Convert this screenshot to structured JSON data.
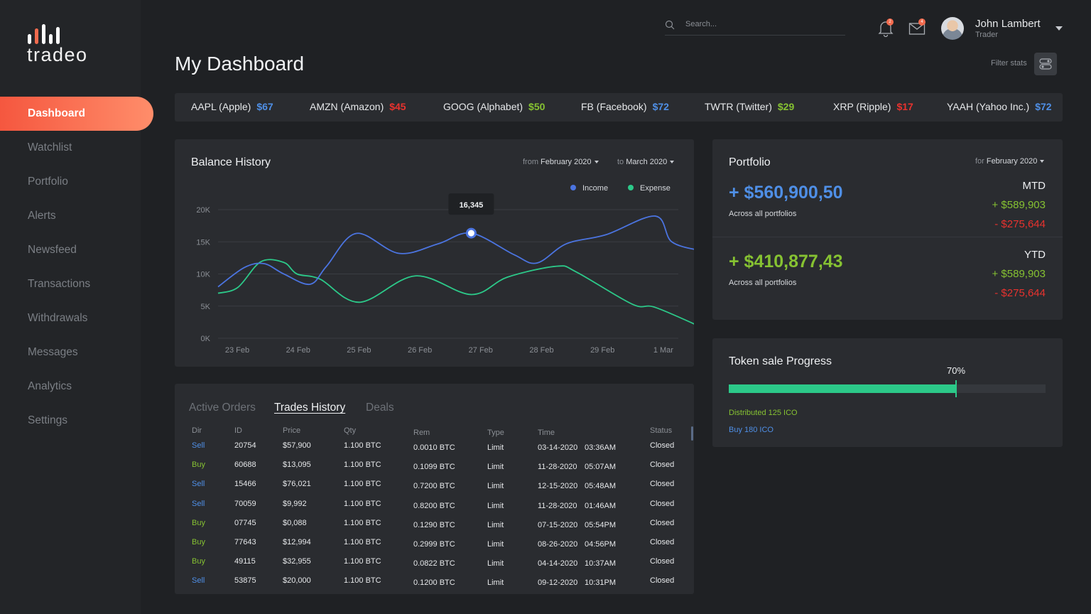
{
  "brand": {
    "name": "tradeo"
  },
  "sidebar": {
    "items": [
      {
        "label": "Dashboard",
        "active": true
      },
      {
        "label": "Watchlist"
      },
      {
        "label": "Portfolio"
      },
      {
        "label": "Alerts"
      },
      {
        "label": "Newsfeed"
      },
      {
        "label": "Transactions"
      },
      {
        "label": "Withdrawals"
      },
      {
        "label": "Messages"
      },
      {
        "label": "Analytics"
      },
      {
        "label": "Settings"
      }
    ]
  },
  "header": {
    "search_placeholder": "Search...",
    "notifications_badge": "2",
    "messages_badge": "4",
    "user": {
      "name": "John Lambert",
      "role": "Trader"
    },
    "page_title": "My Dashboard",
    "filter_label": "Filter stats"
  },
  "ticker": [
    {
      "name": "AAPL (Apple)",
      "price": "$67",
      "color": "#4f8fe6"
    },
    {
      "name": "AMZN (Amazon)",
      "price": "$45",
      "color": "#e8322e"
    },
    {
      "name": "GOOG (Alphabet)",
      "price": "$50",
      "color": "#86c232"
    },
    {
      "name": "FB (Facebook)",
      "price": "$72",
      "color": "#4f8fe6"
    },
    {
      "name": "TWTR (Twitter)",
      "price": "$29",
      "color": "#86c232"
    },
    {
      "name": "XRP (Ripple)",
      "price": "$17",
      "color": "#e8322e"
    },
    {
      "name": "YAAH (Yahoo Inc.)",
      "price": "$72",
      "color": "#4f8fe6"
    }
  ],
  "balance": {
    "title": "Balance History",
    "from_label": "from",
    "from_value": "February 2020",
    "to_label": "to",
    "to_value": "March 2020",
    "tooltip": "16,345"
  },
  "chart_data": {
    "type": "line",
    "title": "Balance History",
    "x": [
      "23 Feb",
      "24 Feb",
      "25 Feb",
      "26 Feb",
      "27 Feb",
      "28 Feb",
      "29 Feb",
      "1 Mar"
    ],
    "y_ticks": [
      "20K",
      "15K",
      "10K",
      "5K",
      "0K"
    ],
    "ylim": [
      0,
      20000
    ],
    "grid": true,
    "legend": "top-right",
    "series": [
      {
        "name": "Income",
        "color": "#4b74e0",
        "points": [
          [
            0,
            8000
          ],
          [
            0.4,
            11000
          ],
          [
            0.7,
            11600
          ],
          [
            1,
            10000
          ],
          [
            1.4,
            8400
          ],
          [
            1.65,
            11200
          ],
          [
            2.1,
            16300
          ],
          [
            2.75,
            13200
          ],
          [
            3.35,
            14700
          ],
          [
            3.85,
            16345
          ],
          [
            4.5,
            13000
          ],
          [
            4.85,
            11700
          ],
          [
            5.3,
            14700
          ],
          [
            5.9,
            16100
          ],
          [
            6.65,
            19000
          ],
          [
            6.9,
            15000
          ],
          [
            7.35,
            13600
          ]
        ]
      },
      {
        "name": "Expense",
        "color": "#2cc989",
        "points": [
          [
            0,
            7000
          ],
          [
            0.3,
            7900
          ],
          [
            0.65,
            11900
          ],
          [
            1,
            11800
          ],
          [
            1.2,
            10000
          ],
          [
            1.55,
            9200
          ],
          [
            2.15,
            5600
          ],
          [
            3,
            9700
          ],
          [
            3.85,
            6800
          ],
          [
            4.4,
            9500
          ],
          [
            5.15,
            11200
          ],
          [
            5.45,
            10300
          ],
          [
            6.3,
            5300
          ],
          [
            6.65,
            4800
          ],
          [
            7.4,
            1500
          ]
        ]
      }
    ]
  },
  "portfolio": {
    "title": "Portfolio",
    "for_label": "for",
    "for_value": "February 2020",
    "mtd": {
      "amount": "+ $560,900,50",
      "caption": "Across all portfolios",
      "label": "MTD",
      "up": "+ $589,903",
      "down": "- $275,644"
    },
    "ytd": {
      "amount": "+ $410,877,43",
      "caption": "Across all portfolios",
      "label": "YTD",
      "up": "+ $589,903",
      "down": "- $275,644"
    },
    "colors": {
      "blue": "#4f8fe6",
      "green": "#86c232",
      "red": "#e8322e"
    }
  },
  "token": {
    "title": "Token sale Progress",
    "percent_label": "70%",
    "progress": 0.7,
    "distributed": "Distributed 125 ICO",
    "buy": "Buy 180 ICO"
  },
  "trades": {
    "tabs": [
      "Active Orders",
      "Trades History",
      "Deals"
    ],
    "active_tab": 1,
    "headers": [
      "Dir",
      "ID",
      "Price",
      "Qty",
      "Rem",
      "Type",
      "Time",
      "Status"
    ],
    "rows": [
      {
        "dir": "Sell",
        "id": "20754",
        "price": "$57,900",
        "qty": "1.100 BTC",
        "rem": "0.0010 BTC",
        "type": "Limit",
        "date": "03-14-2020",
        "time": "03:36AM",
        "status": "Closed"
      },
      {
        "dir": "Buy",
        "id": "60688",
        "price": "$13,095",
        "qty": "1.100 BTC",
        "rem": "0.1099 BTC",
        "type": "Limit",
        "date": "11-28-2020",
        "time": "05:07AM",
        "status": "Closed"
      },
      {
        "dir": "Sell",
        "id": "15466",
        "price": "$76,021",
        "qty": "1.100 BTC",
        "rem": "0.7200 BTC",
        "type": "Limit",
        "date": "12-15-2020",
        "time": "05:48AM",
        "status": "Closed"
      },
      {
        "dir": "Sell",
        "id": "70059",
        "price": "$9,992",
        "qty": "1.100 BTC",
        "rem": "0.8200 BTC",
        "type": "Limit",
        "date": "11-28-2020",
        "time": "01:46AM",
        "status": "Closed"
      },
      {
        "dir": "Buy",
        "id": "07745",
        "price": "$0,088",
        "qty": "1.100 BTC",
        "rem": "0.1290 BTC",
        "type": "Limit",
        "date": "07-15-2020",
        "time": "05:54PM",
        "status": "Closed"
      },
      {
        "dir": "Buy",
        "id": "77643",
        "price": "$12,994",
        "qty": "1.100 BTC",
        "rem": "0.2999 BTC",
        "type": "Limit",
        "date": "08-26-2020",
        "time": "04:56PM",
        "status": "Closed"
      },
      {
        "dir": "Buy",
        "id": "49115",
        "price": "$32,955",
        "qty": "1.100 BTC",
        "rem": "0.0822 BTC",
        "type": "Limit",
        "date": "04-14-2020",
        "time": "10:37AM",
        "status": "Closed"
      },
      {
        "dir": "Sell",
        "id": "53875",
        "price": "$20,000",
        "qty": "1.100 BTC",
        "rem": "0.1200 BTC",
        "type": "Limit",
        "date": "09-12-2020",
        "time": "10:31PM",
        "status": "Closed"
      }
    ]
  }
}
